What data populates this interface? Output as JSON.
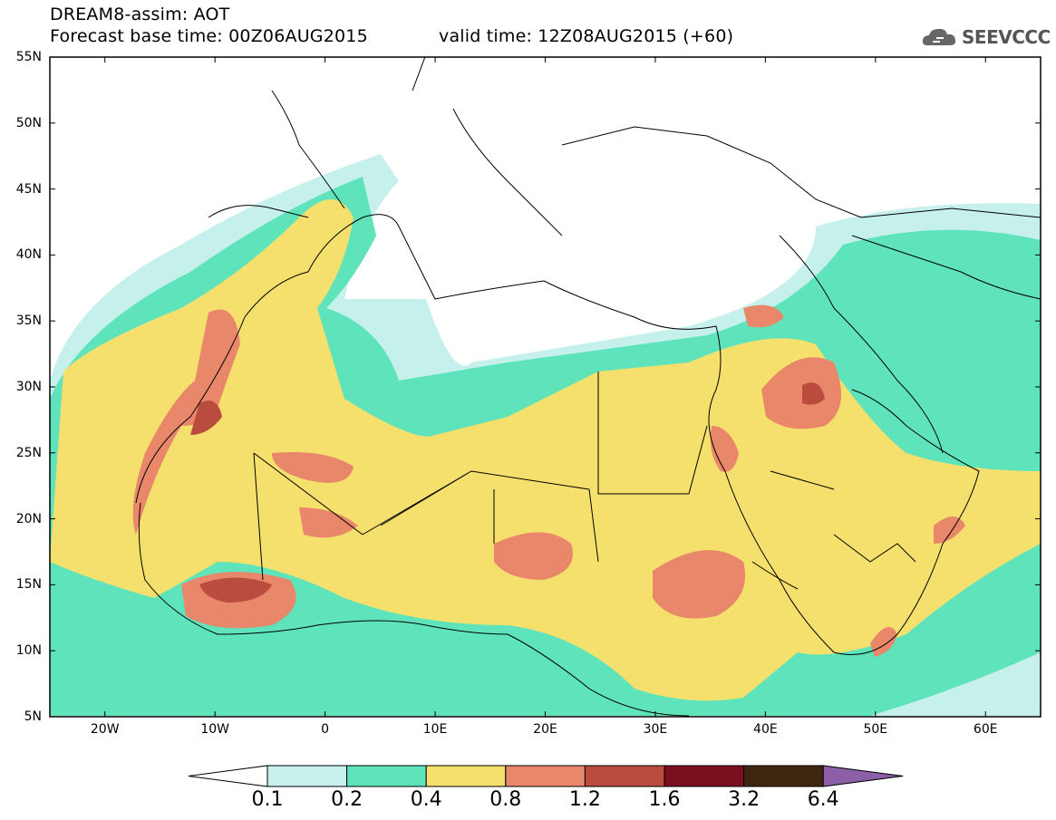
{
  "header": {
    "product": "DREAM8-assim: AOT",
    "base_time": "Forecast base time: 00Z06AUG2015",
    "valid_time": "valid time: 12Z08AUG2015 (+60)",
    "logo": "SEEVCCC"
  },
  "map": {
    "lat_labels": [
      "55N",
      "50N",
      "45N",
      "40N",
      "35N",
      "30N",
      "25N",
      "20N",
      "15N",
      "10N",
      "5N"
    ],
    "lon_labels": [
      "20W",
      "10W",
      "0",
      "10E",
      "20E",
      "30E",
      "40E",
      "50E",
      "60E"
    ],
    "extent": {
      "lon_min": -25,
      "lon_max": 65,
      "lat_min": 5,
      "lat_max": 55
    }
  },
  "legend": {
    "levels": [
      "0.1",
      "0.2",
      "0.4",
      "0.8",
      "1.2",
      "1.6",
      "3.2",
      "6.4"
    ],
    "colors": [
      "#ffffff",
      "#c6f0ec",
      "#5ee3bb",
      "#f5e06e",
      "#e8876a",
      "#b94b3f",
      "#7a0f1f",
      "#3f2611",
      "#8d5fa6"
    ]
  }
}
